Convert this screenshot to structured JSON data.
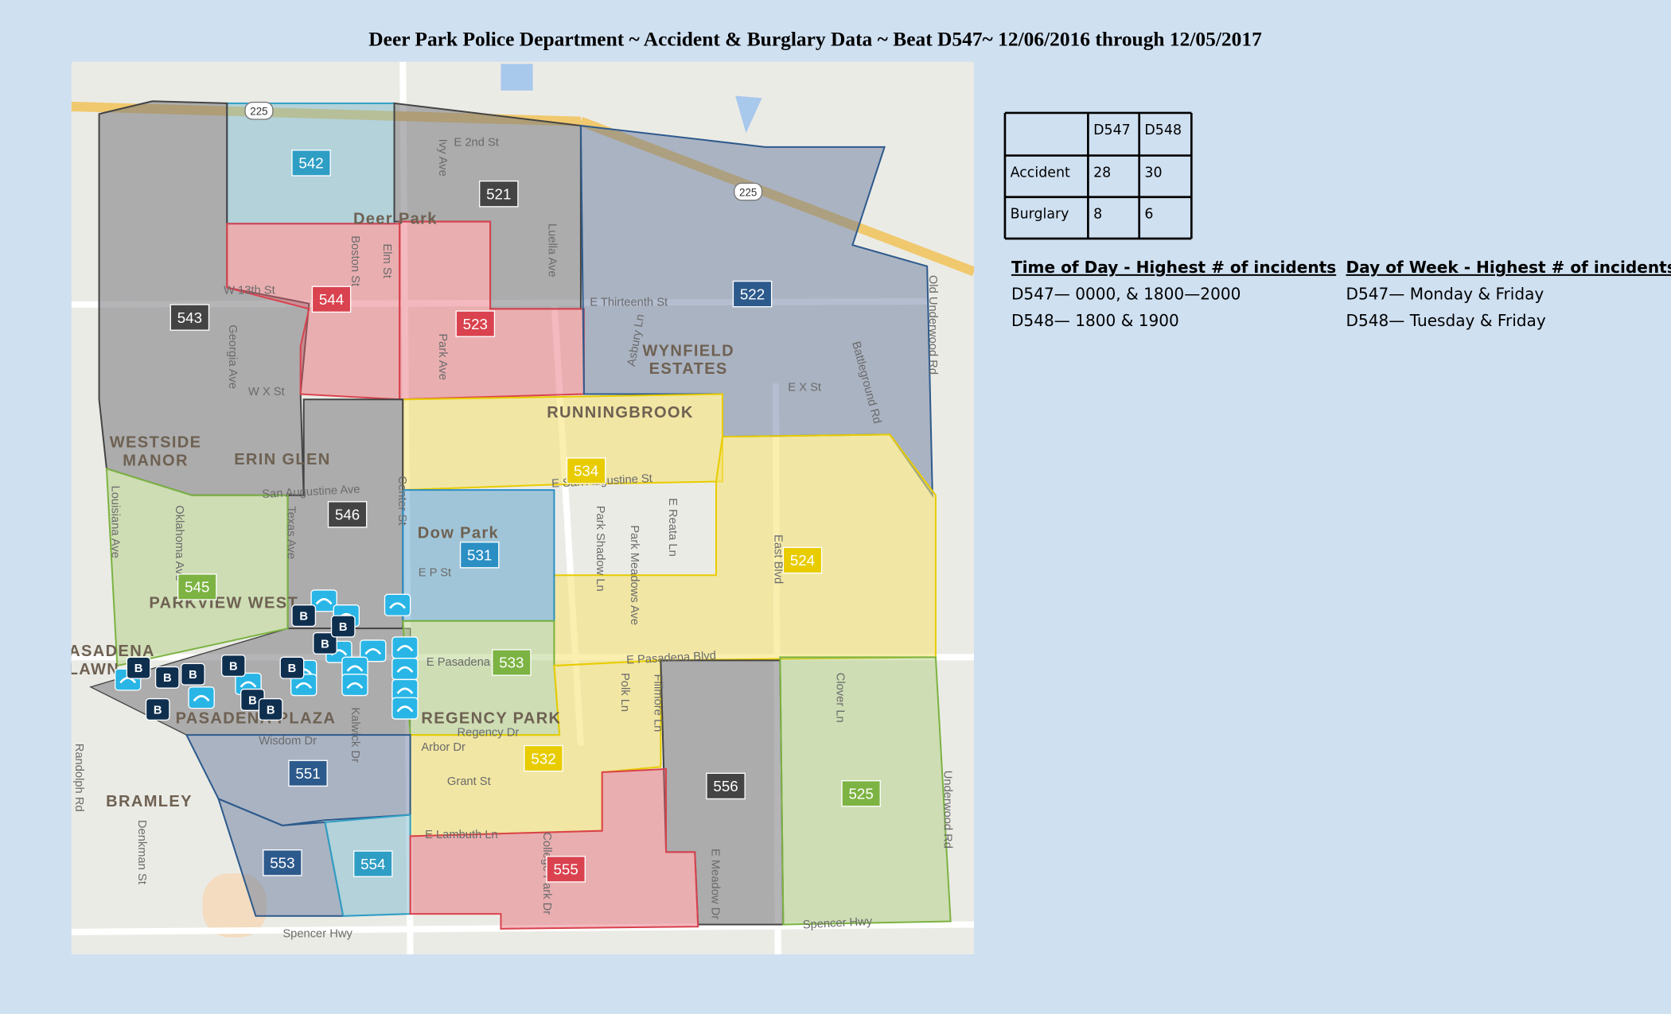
{
  "header": {
    "title": "Deer Park Police Department ~ Accident & Burglary Data ~ Beat D547~ 12/06/2016 through 12/05/2017"
  },
  "map": {
    "highway_shield": "225",
    "burglary_marker": "B",
    "beats": [
      "542",
      "521",
      "543",
      "544",
      "523",
      "522",
      "534",
      "524",
      "546",
      "531",
      "545",
      "533",
      "532",
      "551",
      "556",
      "525",
      "553",
      "554",
      "555"
    ],
    "neighborhoods": [
      "Deer Park",
      "WYNFIELD",
      "ESTATES",
      "RUNNINGBROOK",
      "WESTSIDE",
      "MANOR",
      "ERIN GLEN",
      "Dow Park",
      "PARKVIEW WEST",
      "PASADENA",
      "LAWN",
      "PASADENA PLAZA",
      "REGENCY PARK",
      "BRAMLEY"
    ],
    "streets": [
      "E 2nd St",
      "Ivy Ave",
      "Boston St",
      "Elm St",
      "W 13th St",
      "W X St",
      "Georgia Ave",
      "Park Ave",
      "Luella Ave",
      "E Thirteenth St",
      "Asbury Ln",
      "E X St",
      "Battleground Rd",
      "Old Underwood Rd",
      "E San Augustine St",
      "San Augustine Ave",
      "Center St",
      "E P St",
      "Park Shadow Ln",
      "Park Meadows Ave",
      "E Reata Ln",
      "East Blvd",
      "Oklahoma Ave",
      "Louisiana Ave",
      "Texas Ave",
      "E Pasadena Blvd",
      "E Pasadena",
      "Polk Ln",
      "Fillmore Ln",
      "Clover Ln",
      "Regency Dr",
      "Arbor Dr",
      "Wisdom Dr",
      "Kalwick Dr",
      "Grant St",
      "E Lambuth Ln",
      "College Park Dr",
      "E Meadow Dr",
      "Underwood Rd",
      "Denkman St",
      "Randolph Rd",
      "Spencer Hwy",
      "Spencer Hwy"
    ]
  },
  "table": {
    "columns": [
      "D547",
      "D548"
    ],
    "rows": [
      {
        "label": "Accident",
        "values": [
          28,
          30
        ]
      },
      {
        "label": "Burglary",
        "values": [
          8,
          6
        ]
      }
    ]
  },
  "notes": [
    {
      "heading": "Time of Day  -  Highest # of incidents",
      "lines": [
        "D547— 0000, & 1800—2000",
        "D548— 1800 & 1900"
      ]
    },
    {
      "heading": "Day of Week -  Highest # of incidents",
      "lines": [
        "D547— Monday & Friday",
        "D548— Tuesday & Friday"
      ]
    }
  ]
}
